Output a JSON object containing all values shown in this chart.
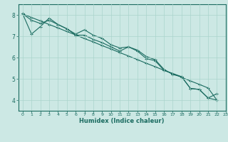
{
  "xlabel": "Humidex (Indice chaleur)",
  "ylabel": "",
  "xlim": [
    -0.5,
    23
  ],
  "ylim": [
    3.5,
    8.5
  ],
  "xticks": [
    0,
    1,
    2,
    3,
    4,
    5,
    6,
    7,
    8,
    9,
    10,
    11,
    12,
    13,
    14,
    15,
    16,
    17,
    18,
    19,
    20,
    21,
    22,
    23
  ],
  "yticks": [
    4,
    5,
    6,
    7,
    8
  ],
  "background_color": "#cce8e4",
  "line_color": "#1a6b60",
  "line1_x": [
    0,
    1,
    2,
    3,
    4,
    5,
    6,
    7,
    8,
    9,
    10,
    11,
    12,
    13,
    14,
    15,
    16,
    17,
    18,
    19,
    20,
    21,
    22
  ],
  "line1_y": [
    8.05,
    7.75,
    7.6,
    7.75,
    7.55,
    7.35,
    7.1,
    7.3,
    7.05,
    6.9,
    6.6,
    6.45,
    6.5,
    6.3,
    5.95,
    5.85,
    5.4,
    5.25,
    5.1,
    4.55,
    4.5,
    4.1,
    4.3
  ],
  "line2_x": [
    0,
    1,
    2,
    3,
    4,
    5,
    6,
    7,
    8,
    9,
    10,
    11,
    12,
    13,
    14,
    15,
    16,
    17,
    18,
    19,
    20,
    21,
    22
  ],
  "line2_y": [
    8.05,
    7.1,
    7.45,
    7.85,
    7.55,
    7.35,
    7.05,
    7.05,
    6.85,
    6.7,
    6.5,
    6.3,
    6.5,
    6.35,
    6.05,
    5.9,
    5.45,
    5.2,
    5.1,
    4.55,
    4.5,
    4.1,
    4.0
  ],
  "line3_x": [
    0,
    1,
    2,
    3,
    4,
    5,
    6,
    7,
    8,
    9,
    10,
    11,
    12,
    13,
    14,
    15,
    16,
    17,
    18,
    19,
    20,
    21,
    22
  ],
  "line3_y": [
    8.05,
    7.88,
    7.72,
    7.55,
    7.39,
    7.22,
    7.06,
    6.89,
    6.73,
    6.56,
    6.4,
    6.23,
    6.07,
    5.9,
    5.73,
    5.57,
    5.4,
    5.24,
    5.07,
    4.9,
    4.74,
    4.57,
    4.0
  ],
  "grid_color": "#aad4cc",
  "grid_major_color": "#bbddcc"
}
